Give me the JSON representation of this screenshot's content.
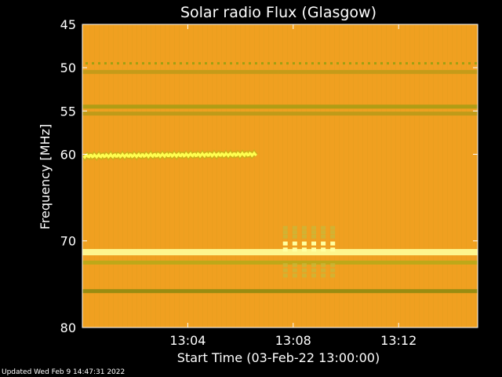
{
  "chart_data": {
    "type": "heatmap",
    "title": "Solar radio Flux (Glasgow)",
    "xlabel": "Start Time (03-Feb-22 13:00:00)",
    "ylabel": "Frequency [MHz]",
    "x_unit": "minutes after 13:00:00",
    "xlim": [
      0,
      15
    ],
    "ylim": [
      45,
      80
    ],
    "y_scale": "inverted",
    "x_ticks": [
      {
        "value": 4,
        "label": "13:04"
      },
      {
        "value": 8,
        "label": "13:08"
      },
      {
        "value": 12,
        "label": "13:12"
      }
    ],
    "y_ticks": [
      {
        "value": 45,
        "label": "45"
      },
      {
        "value": 50,
        "label": "50"
      },
      {
        "value": 55,
        "label": "55"
      },
      {
        "value": 60,
        "label": "60"
      },
      {
        "value": 70,
        "label": "70"
      },
      {
        "value": 80,
        "label": "80"
      }
    ],
    "background_color": "#f0a020",
    "bands": [
      {
        "freq_mhz": 49.5,
        "color": "#9fa012",
        "style": "dotted"
      },
      {
        "freq_mhz": 50.5,
        "color": "#c09a18",
        "style": "solid"
      },
      {
        "freq_mhz": 54.5,
        "color": "#a89c14",
        "style": "solid"
      },
      {
        "freq_mhz": 55.3,
        "color": "#b99a18",
        "style": "solid"
      },
      {
        "freq_mhz": 71.3,
        "color": "#ffff9a",
        "style": "solid"
      },
      {
        "freq_mhz": 72.5,
        "color": "#b8a818",
        "style": "solid"
      },
      {
        "freq_mhz": 75.8,
        "color": "#8f8a10",
        "style": "solid"
      }
    ],
    "bursts": [
      {
        "x_start": 0.05,
        "x_end": 6.6,
        "freq_start": 60.2,
        "freq_end": 60.0,
        "color": "#ffff50"
      },
      {
        "x_start": 7.7,
        "x_end": 9.5,
        "freq_start": 68.5,
        "freq_end": 74.0,
        "color": "#ffff80"
      }
    ]
  },
  "footer": {
    "updated": "Updated Wed Feb  9 14:47:31 2022"
  }
}
